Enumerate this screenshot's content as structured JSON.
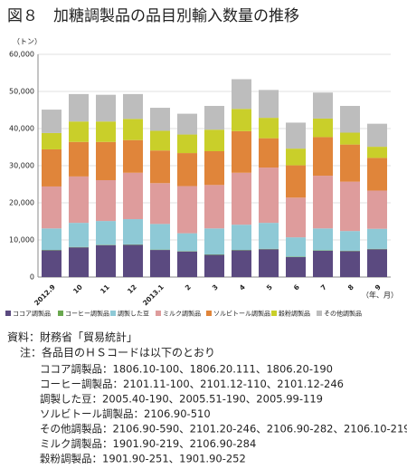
{
  "chart_data": {
    "type": "stacked-bar",
    "title": "図８　加糖調製品の品目別輸入数量の推移",
    "y_label": "（トン）",
    "x_label": "（年、月）",
    "categories": [
      "2012.9",
      "10",
      "11",
      "12",
      "2013.1",
      "2",
      "3",
      "4",
      "5",
      "6",
      "7",
      "8",
      "9"
    ],
    "series": [
      {
        "name": "ココア調製品",
        "color": "#5b4a80",
        "values": [
          7200,
          8000,
          8600,
          8700,
          7300,
          6900,
          6000,
          7200,
          7500,
          5400,
          7100,
          7000,
          7500
        ]
      },
      {
        "name": "コーヒー調製品",
        "color": "#6aa84f",
        "values": [
          100,
          100,
          100,
          100,
          100,
          100,
          100,
          100,
          100,
          100,
          100,
          100,
          100
        ]
      },
      {
        "name": "調製した豆",
        "color": "#8ec9d6",
        "values": [
          5800,
          6500,
          6400,
          6800,
          6900,
          4800,
          7000,
          6800,
          7000,
          5200,
          5900,
          5300,
          5400
        ]
      },
      {
        "name": "ミルク調製品",
        "color": "#de9c9c",
        "values": [
          11300,
          12500,
          11000,
          12500,
          11000,
          12700,
          11700,
          14000,
          14900,
          10700,
          14200,
          13300,
          10300
        ]
      },
      {
        "name": "ソルビトール調製品",
        "color": "#e0853a",
        "values": [
          10000,
          9300,
          10300,
          8800,
          8800,
          8900,
          9100,
          11200,
          7900,
          8700,
          10400,
          10000,
          8800
        ]
      },
      {
        "name": "穀粉調製品",
        "color": "#c9cf2a",
        "values": [
          4400,
          5500,
          5500,
          5700,
          5300,
          5000,
          5800,
          6000,
          5500,
          4500,
          5000,
          3200,
          3000
        ]
      },
      {
        "name": "その他調製品",
        "color": "#bdbdbd",
        "values": [
          6300,
          7400,
          7200,
          6700,
          6200,
          5600,
          6400,
          8000,
          7500,
          7000,
          7000,
          7200,
          6200
        ]
      }
    ],
    "ylim": [
      0,
      60000
    ],
    "yticks": [
      0,
      {
        "value": 10000,
        "label": "10,000"
      },
      {
        "value": 20000,
        "label": "20,000"
      },
      {
        "value": 30000,
        "label": "30,000"
      },
      {
        "value": 40000,
        "label": "40,000"
      },
      {
        "value": 50000,
        "label": "50,000"
      },
      {
        "value": 60000,
        "label": "60,000"
      }
    ],
    "grid": true
  },
  "notes": {
    "source": "資料：財務省「貿易統計」",
    "intro": "注：各品目のＨＳコードは以下のとおり",
    "lines": [
      "ココア調製品：1806.10-100、1806.20.111、1806.20-190",
      "コーヒー調製品：2101.11-100、2101.12-110、2101.12-246",
      "調製した豆：2005.40-190、2005.51-190、2005.99-119",
      "ソルビトール調製品：2106.90-510",
      "その他調製品：2106.90-590、2101.20-246、2106.90-282、2106.10-219",
      "ミルク調製品：1901.90-219、2106.90-284",
      "穀粉調製品：1901.90-251、1901.90-252"
    ]
  }
}
